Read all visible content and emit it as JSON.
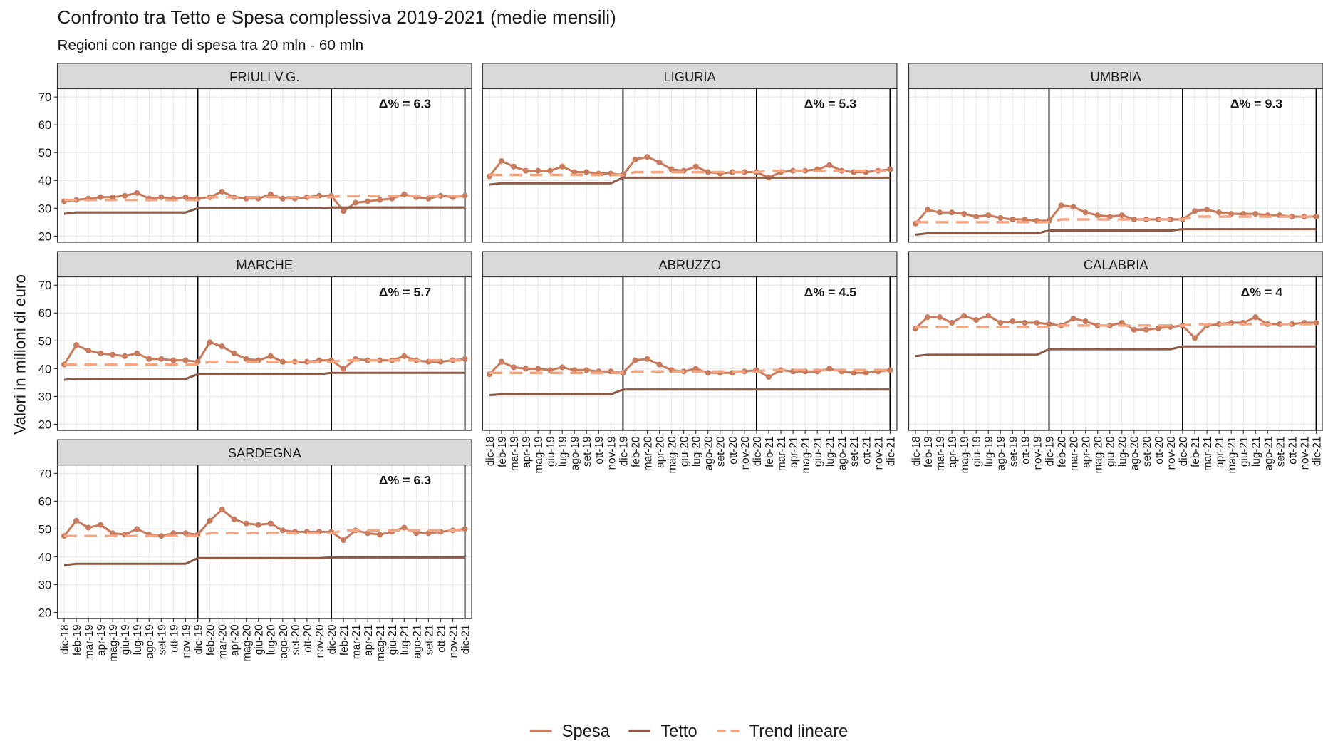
{
  "chart_data": {
    "type": "line",
    "title": "Confronto tra Tetto e Spesa complessiva 2019-2021 (medie mensili)",
    "subtitle": "Regioni con range di spesa tra 20 mln - 60 mln",
    "y_label": "Valori in milioni di euro",
    "categories": [
      "dic-18",
      "feb-19",
      "mar-19",
      "apr-19",
      "mag-19",
      "giu-19",
      "lug-19",
      "ago-19",
      "set-19",
      "ott-19",
      "nov-19",
      "dic-19",
      "feb-20",
      "mar-20",
      "apr-20",
      "mag-20",
      "giu-20",
      "lug-20",
      "ago-20",
      "set-20",
      "ott-20",
      "nov-20",
      "dic-20",
      "feb-21",
      "mar-21",
      "apr-21",
      "mag-21",
      "giu-21",
      "lug-21",
      "ago-21",
      "set-21",
      "ott-21",
      "nov-21",
      "dic-21"
    ],
    "ylim": [
      17.8,
      73
    ],
    "yticks": [
      20,
      30,
      40,
      50,
      60,
      70
    ],
    "grid": true,
    "legend": "bottom",
    "facets": [
      {
        "name": "FRIULI V.G.",
        "annotation": "Δ% = 6.3",
        "series": [
          {
            "name": "Spesa",
            "color": "#c97b5d",
            "style": "solid",
            "markers": true,
            "values": [
              32.5,
              33,
              33.5,
              34,
              34,
              34.5,
              35.5,
              33.5,
              34,
              33.5,
              34,
              33.5,
              34,
              36,
              34,
              33.5,
              33.5,
              35,
              33.5,
              33.5,
              34,
              34.5,
              34.5,
              29,
              32,
              32.5,
              33,
              33.5,
              35,
              34,
              33.5,
              34.5,
              34,
              34.5
            ]
          },
          {
            "name": "Tetto",
            "color": "#8c5a46",
            "style": "solid",
            "markers": false,
            "values": [
              28,
              28.5,
              28.5,
              28.5,
              28.5,
              28.5,
              28.5,
              28.5,
              28.5,
              28.5,
              28.5,
              30,
              30,
              30,
              30,
              30,
              30,
              30,
              30,
              30,
              30,
              30,
              30.3,
              30.3,
              30.3,
              30.3,
              30.3,
              30.3,
              30.3,
              30.3,
              30.3,
              30.3,
              30.3,
              30.3
            ]
          },
          {
            "name": "Trend lineare",
            "color": "#f4a582",
            "style": "dashed",
            "markers": false,
            "values": [
              33,
              33,
              33,
              33,
              33,
              33,
              33,
              33,
              33,
              33,
              33,
              33,
              34,
              34,
              34,
              34,
              34,
              34,
              34,
              34,
              34,
              34,
              34,
              34.5,
              34.5,
              34.5,
              34.5,
              34.5,
              34.5,
              34.5,
              34.5,
              34.5,
              34.5,
              34.5
            ]
          }
        ]
      },
      {
        "name": "LIGURIA",
        "annotation": "Δ% = 5.3",
        "series": [
          {
            "name": "Spesa",
            "color": "#c97b5d",
            "style": "solid",
            "markers": true,
            "values": [
              41.5,
              47,
              45,
              43.5,
              43.5,
              43.5,
              45,
              43,
              43,
              42.5,
              42.5,
              42,
              47.5,
              48.5,
              46.5,
              44,
              43.5,
              45,
              43,
              42.5,
              43,
              43,
              43,
              41,
              43,
              43.5,
              43.5,
              44,
              45.5,
              43.5,
              43,
              43,
              43.5,
              44
            ]
          },
          {
            "name": "Tetto",
            "color": "#8c5a46",
            "style": "solid",
            "markers": false,
            "values": [
              38.5,
              39,
              39,
              39,
              39,
              39,
              39,
              39,
              39,
              39,
              39,
              41,
              41,
              41,
              41,
              41,
              41,
              41,
              41,
              41,
              41,
              41,
              41,
              41,
              41,
              41,
              41,
              41,
              41,
              41,
              41,
              41,
              41,
              41
            ]
          },
          {
            "name": "Trend lineare",
            "color": "#f4a582",
            "style": "dashed",
            "markers": false,
            "values": [
              42,
              42,
              42,
              42,
              42,
              42,
              42,
              42,
              42,
              42,
              42,
              42,
              43,
              43,
              43,
              43,
              43,
              43,
              43,
              43,
              43,
              43,
              43,
              43.5,
              43.5,
              43.5,
              43.5,
              43.5,
              43.5,
              43.5,
              43.5,
              43.5,
              43.5,
              43.5
            ]
          }
        ]
      },
      {
        "name": "UMBRIA",
        "annotation": "Δ% = 9.3",
        "series": [
          {
            "name": "Spesa",
            "color": "#c97b5d",
            "style": "solid",
            "markers": true,
            "values": [
              24.5,
              29.5,
              28.5,
              28.5,
              28,
              27,
              27.5,
              26.5,
              26,
              26,
              25.5,
              25.5,
              31,
              30.5,
              28.5,
              27.5,
              27,
              27.5,
              26,
              26,
              26,
              26,
              26,
              29,
              29.5,
              28.5,
              28,
              28,
              28,
              27.5,
              27.5,
              27,
              27,
              27
            ]
          },
          {
            "name": "Tetto",
            "color": "#8c5a46",
            "style": "solid",
            "markers": false,
            "values": [
              20.5,
              21,
              21,
              21,
              21,
              21,
              21,
              21,
              21,
              21,
              21,
              22,
              22,
              22,
              22,
              22,
              22,
              22,
              22,
              22,
              22,
              22,
              22.5,
              22.5,
              22.5,
              22.5,
              22.5,
              22.5,
              22.5,
              22.5,
              22.5,
              22.5,
              22.5,
              22.5
            ]
          },
          {
            "name": "Trend lineare",
            "color": "#f4a582",
            "style": "dashed",
            "markers": false,
            "values": [
              25,
              25,
              25,
              25,
              25,
              25,
              25,
              25,
              25,
              25,
              25,
              25,
              26,
              26,
              26,
              26,
              26,
              26,
              26,
              26,
              26,
              26,
              26,
              27,
              27,
              27,
              27,
              27,
              27,
              27,
              27,
              27,
              27,
              27
            ]
          }
        ]
      },
      {
        "name": "MARCHE",
        "annotation": "Δ% = 5.7",
        "series": [
          {
            "name": "Spesa",
            "color": "#c97b5d",
            "style": "solid",
            "markers": true,
            "values": [
              41.5,
              48.5,
              46.5,
              45.5,
              45,
              44.5,
              45.5,
              43.5,
              43.5,
              43,
              43,
              42.5,
              49.5,
              48,
              45.5,
              43.5,
              43,
              44.5,
              42.5,
              42.5,
              42.5,
              43,
              43,
              40,
              43.5,
              43,
              43,
              43,
              44.5,
              43,
              42.5,
              42.5,
              43,
              43.5
            ]
          },
          {
            "name": "Tetto",
            "color": "#8c5a46",
            "style": "solid",
            "markers": false,
            "values": [
              36,
              36.3,
              36.3,
              36.3,
              36.3,
              36.3,
              36.3,
              36.3,
              36.3,
              36.3,
              36.3,
              38,
              38,
              38,
              38,
              38,
              38,
              38,
              38,
              38,
              38,
              38,
              38.5,
              38.5,
              38.5,
              38.5,
              38.5,
              38.5,
              38.5,
              38.5,
              38.5,
              38.5,
              38.5,
              38.5
            ]
          },
          {
            "name": "Trend lineare",
            "color": "#f4a582",
            "style": "dashed",
            "markers": false,
            "values": [
              41.5,
              41.5,
              41.5,
              41.5,
              41.5,
              41.5,
              41.5,
              41.5,
              41.5,
              41.5,
              41.5,
              41.5,
              42.5,
              42.5,
              42.5,
              42.5,
              42.5,
              42.5,
              42.5,
              42.5,
              42.5,
              42.5,
              42.5,
              43,
              43,
              43,
              43,
              43,
              43,
              43,
              43,
              43,
              43,
              43
            ]
          }
        ]
      },
      {
        "name": "ABRUZZO",
        "annotation": "Δ% = 4.5",
        "series": [
          {
            "name": "Spesa",
            "color": "#c97b5d",
            "style": "solid",
            "markers": true,
            "values": [
              38,
              42.5,
              40.5,
              40,
              40,
              39.5,
              40.5,
              39.5,
              39.5,
              39,
              39,
              38.5,
              43,
              43.5,
              41.5,
              39.5,
              39,
              40,
              38.5,
              38.5,
              38.5,
              39,
              39.5,
              37,
              39.5,
              39,
              39,
              39,
              40,
              39,
              38.5,
              38.5,
              39,
              39.5
            ]
          },
          {
            "name": "Tetto",
            "color": "#8c5a46",
            "style": "solid",
            "markers": false,
            "values": [
              30.5,
              30.8,
              30.8,
              30.8,
              30.8,
              30.8,
              30.8,
              30.8,
              30.8,
              30.8,
              30.8,
              32.5,
              32.5,
              32.5,
              32.5,
              32.5,
              32.5,
              32.5,
              32.5,
              32.5,
              32.5,
              32.5,
              32.5,
              32.5,
              32.5,
              32.5,
              32.5,
              32.5,
              32.5,
              32.5,
              32.5,
              32.5,
              32.5,
              32.5
            ]
          },
          {
            "name": "Trend lineare",
            "color": "#f4a582",
            "style": "dashed",
            "markers": false,
            "values": [
              38.5,
              38.5,
              38.5,
              38.5,
              38.5,
              38.5,
              38.5,
              38.5,
              38.5,
              38.5,
              38.5,
              38.5,
              39,
              39,
              39,
              39,
              39,
              39,
              39,
              39,
              39,
              39,
              39,
              39.5,
              39.5,
              39.5,
              39.5,
              39.5,
              39.5,
              39.5,
              39.5,
              39.5,
              39.5,
              39.5
            ]
          }
        ]
      },
      {
        "name": "CALABRIA",
        "annotation": "Δ% = 4",
        "series": [
          {
            "name": "Spesa",
            "color": "#c97b5d",
            "style": "solid",
            "markers": true,
            "values": [
              54.5,
              58.5,
              58.5,
              56.5,
              59,
              57.5,
              59,
              56.5,
              57,
              56.5,
              56.5,
              56,
              55.5,
              58,
              57,
              55.5,
              55.5,
              56.5,
              54,
              54,
              54.5,
              55,
              55.5,
              51,
              55.5,
              56,
              56.5,
              56.5,
              58.5,
              56,
              56,
              56,
              56.5,
              56.5
            ]
          },
          {
            "name": "Tetto",
            "color": "#8c5a46",
            "style": "solid",
            "markers": false,
            "values": [
              44.5,
              45,
              45,
              45,
              45,
              45,
              45,
              45,
              45,
              45,
              45,
              47,
              47,
              47,
              47,
              47,
              47,
              47,
              47,
              47,
              47,
              47,
              48,
              48,
              48,
              48,
              48,
              48,
              48,
              48,
              48,
              48,
              48,
              48
            ]
          },
          {
            "name": "Trend lineare",
            "color": "#f4a582",
            "style": "dashed",
            "markers": false,
            "values": [
              55,
              55,
              55,
              55,
              55,
              55,
              55,
              55,
              55,
              55,
              55,
              55,
              55.5,
              55.5,
              55.5,
              55.5,
              55.5,
              55.5,
              55.5,
              55.5,
              55.5,
              55.5,
              55.5,
              56,
              56,
              56,
              56,
              56,
              56,
              56,
              56,
              56,
              56,
              56
            ]
          }
        ]
      },
      {
        "name": "SARDEGNA",
        "annotation": "Δ% = 6.3",
        "series": [
          {
            "name": "Spesa",
            "color": "#c97b5d",
            "style": "solid",
            "markers": true,
            "values": [
              47.5,
              53,
              50.5,
              51.5,
              48.5,
              48,
              50,
              48,
              47.5,
              48.5,
              48.5,
              48,
              53,
              57,
              53.5,
              52,
              51.5,
              52,
              49.5,
              49,
              49,
              49,
              49,
              46,
              49.5,
              48.5,
              48,
              49,
              50.5,
              48.5,
              48.5,
              49,
              49.5,
              50
            ]
          },
          {
            "name": "Tetto",
            "color": "#8c5a46",
            "style": "solid",
            "markers": false,
            "values": [
              37,
              37.5,
              37.5,
              37.5,
              37.5,
              37.5,
              37.5,
              37.5,
              37.5,
              37.5,
              37.5,
              39.5,
              39.5,
              39.5,
              39.5,
              39.5,
              39.5,
              39.5,
              39.5,
              39.5,
              39.5,
              39.5,
              39.8,
              39.8,
              39.8,
              39.8,
              39.8,
              39.8,
              39.8,
              39.8,
              39.8,
              39.8,
              39.8,
              39.8
            ]
          },
          {
            "name": "Trend lineare",
            "color": "#f4a582",
            "style": "dashed",
            "markers": false,
            "values": [
              47.5,
              47.5,
              47.5,
              47.5,
              47.5,
              47.5,
              47.5,
              47.5,
              47.5,
              47.5,
              47.5,
              47.5,
              48.5,
              48.5,
              48.5,
              48.5,
              48.5,
              48.5,
              48.5,
              48.5,
              48.5,
              48.5,
              48.5,
              49.5,
              49.5,
              49.5,
              49.5,
              49.5,
              49.5,
              49.5,
              49.5,
              49.5,
              49.5,
              49.5
            ]
          }
        ]
      }
    ]
  }
}
